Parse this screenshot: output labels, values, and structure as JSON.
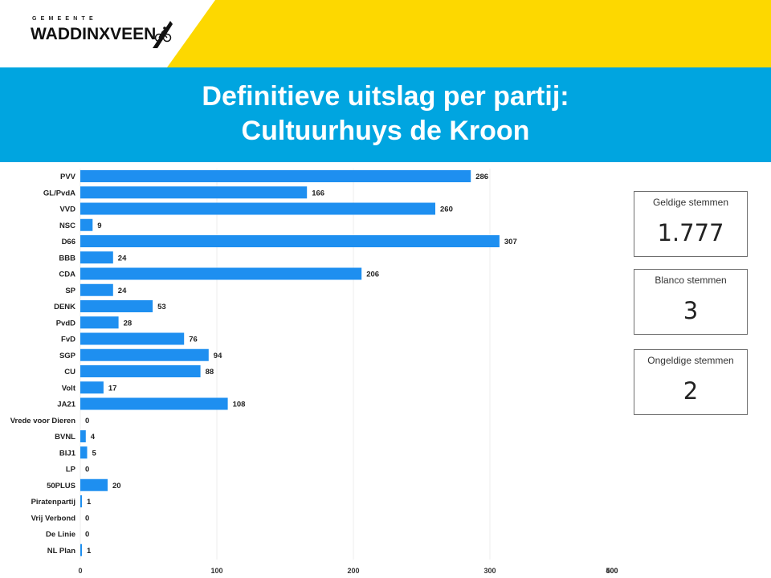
{
  "header": {
    "logo_small": "GEMEENTE",
    "logo_main": "WADDINXVEEN",
    "title_line1": "Definitieve uitslag per partij:",
    "title_line2": "Cultuurhuys de Kroon",
    "colors": {
      "yellow": "#fdd800",
      "blue": "#00a5e0",
      "bar": "#1e8ff0"
    }
  },
  "chart_data": {
    "type": "bar",
    "orientation": "horizontal",
    "categories": [
      "PVV",
      "GL/PvdA",
      "VVD",
      "NSC",
      "D66",
      "BBB",
      "CDA",
      "SP",
      "DENK",
      "PvdD",
      "FvD",
      "SGP",
      "CU",
      "Volt",
      "JA21",
      "Vrede voor Dieren",
      "BVNL",
      "BIJ1",
      "LP",
      "50PLUS",
      "Piratenpartij",
      "Vrij Verbond",
      "De Linie",
      "NL Plan"
    ],
    "values": [
      286,
      166,
      260,
      9,
      307,
      24,
      206,
      24,
      53,
      28,
      76,
      94,
      88,
      17,
      108,
      0,
      4,
      5,
      0,
      20,
      1,
      0,
      0,
      1
    ],
    "xlim": [
      0,
      500
    ],
    "xticks": [
      "0",
      "100",
      "200",
      "300",
      "400",
      "500"
    ],
    "data_labels": true
  },
  "cards": [
    {
      "label": "Geldige stemmen",
      "value": "1.777"
    },
    {
      "label": "Blanco stemmen",
      "value": "3"
    },
    {
      "label": "Ongeldige stemmen",
      "value": "2"
    }
  ]
}
